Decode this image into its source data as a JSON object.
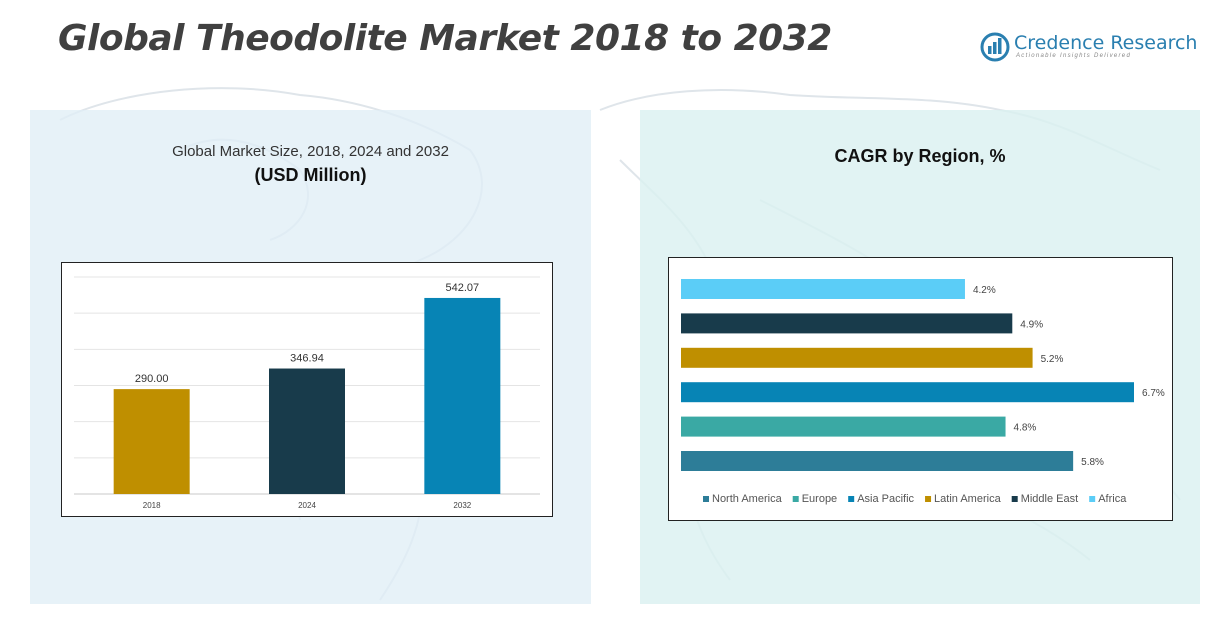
{
  "title": "Global Theodolite Market 2018 to 2032",
  "logo": {
    "name": "Credence Research",
    "tagline": "Actionable Insights Delivered"
  },
  "left_panel": {
    "title_line1": "Global Market Size, 2018, 2024 and 2032",
    "title_line2": "(USD Million)"
  },
  "right_panel": {
    "title": "CAGR by Region, %"
  },
  "colors": {
    "brand": "#2a7fb0",
    "gold": "#bf8f00",
    "navy": "#183b4b",
    "blue": "#0784b5",
    "sky": "#5bcdf7",
    "teal": "#3aa9a4",
    "steel": "#2d7d98"
  },
  "chart_data": [
    {
      "type": "bar",
      "title": "Global Market Size, 2018, 2024 and 2032",
      "subtitle": "(USD Million)",
      "categories": [
        "2018",
        "2024",
        "2032"
      ],
      "values": [
        290.0,
        346.94,
        542.07
      ],
      "value_labels": [
        "290.00",
        "346.94",
        "542.07"
      ],
      "bar_colors": [
        "#bf8f00",
        "#183b4b",
        "#0784b5"
      ],
      "ylim": [
        0,
        600
      ],
      "grid": true,
      "legend": "none"
    },
    {
      "type": "bar",
      "orientation": "horizontal",
      "title": "CAGR by Region, %",
      "categories": [
        "Africa",
        "Middle East",
        "Latin America",
        "Asia Pacific",
        "Europe",
        "North America"
      ],
      "values": [
        4.2,
        4.9,
        5.2,
        6.7,
        4.8,
        5.8
      ],
      "value_labels": [
        "4.2%",
        "4.9%",
        "5.2%",
        "6.7%",
        "4.8%",
        "5.8%"
      ],
      "bar_colors": [
        "#5bcdf7",
        "#183b4b",
        "#bf8f00",
        "#0784b5",
        "#3aa9a4",
        "#2d7d98"
      ],
      "xlim": [
        0,
        6.7
      ],
      "grid": false,
      "legend_position": "bottom",
      "legend": [
        {
          "label": "North America",
          "color": "#2d7d98"
        },
        {
          "label": "Europe",
          "color": "#3aa9a4"
        },
        {
          "label": "Asia Pacific",
          "color": "#0784b5"
        },
        {
          "label": "Latin America",
          "color": "#bf8f00"
        },
        {
          "label": "Middle East",
          "color": "#183b4b"
        },
        {
          "label": "Africa",
          "color": "#5bcdf7"
        }
      ]
    }
  ]
}
